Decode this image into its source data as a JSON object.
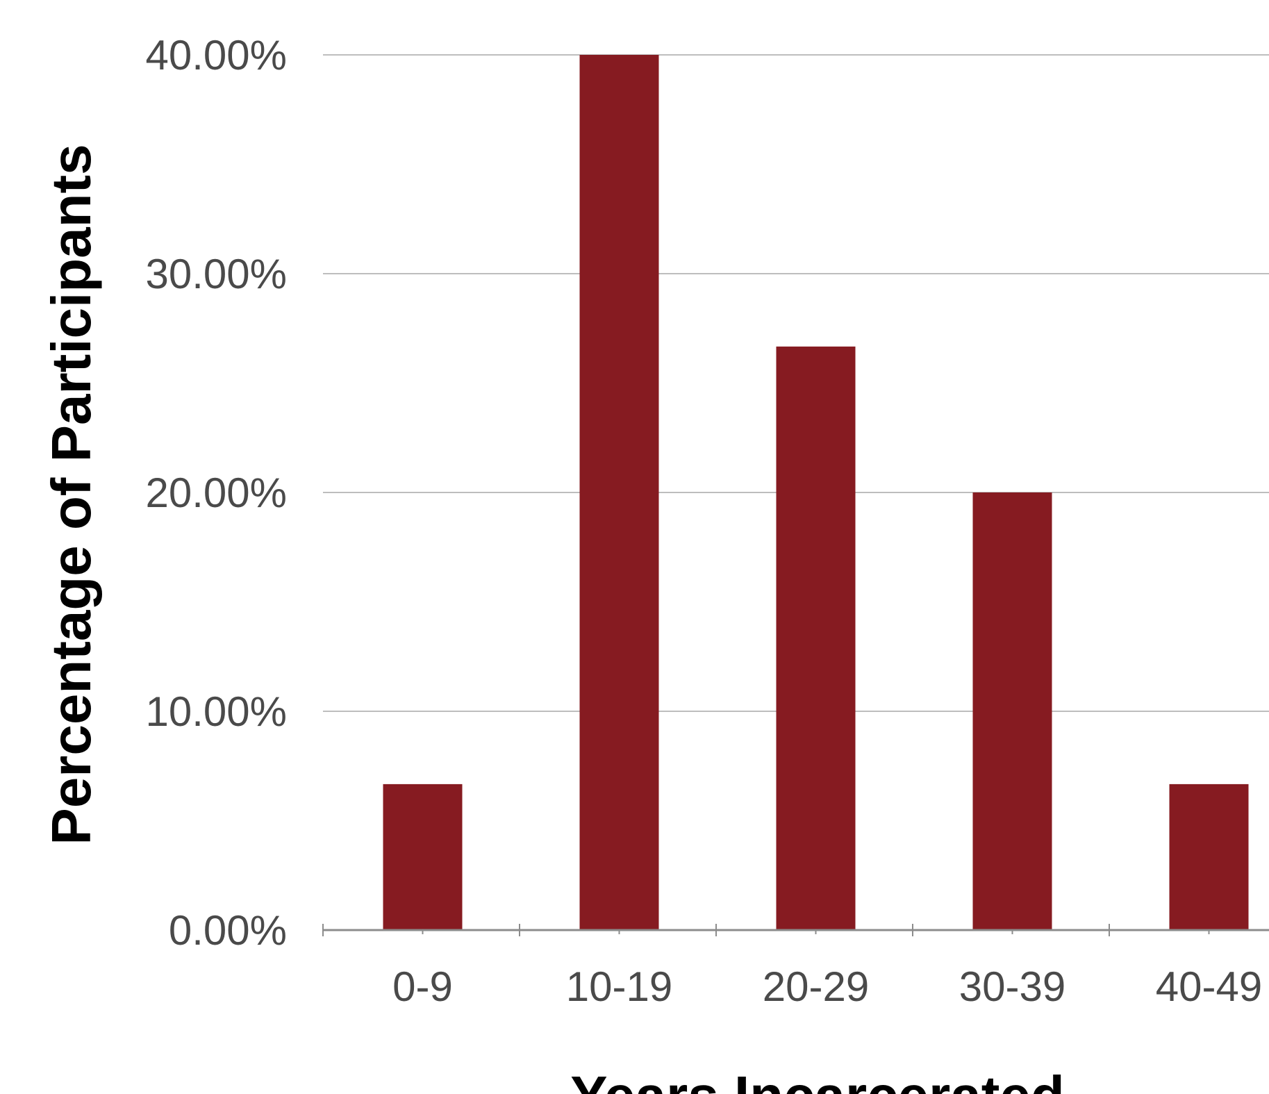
{
  "chart_data": {
    "type": "bar",
    "title": "",
    "xlabel": "Years Incarcerated",
    "ylabel": "Percentage of Participants",
    "categories": [
      "0-9",
      "10-19",
      "20-29",
      "30-39",
      "40-49"
    ],
    "values": [
      6.67,
      40.0,
      26.67,
      20.0,
      6.67
    ],
    "y_ticks": [
      "0.00%",
      "10.00%",
      "20.00%",
      "30.00%",
      "40.00%"
    ],
    "ylim": [
      0,
      40
    ],
    "grid": true,
    "legend": "none",
    "bar_color": "#861b21"
  }
}
